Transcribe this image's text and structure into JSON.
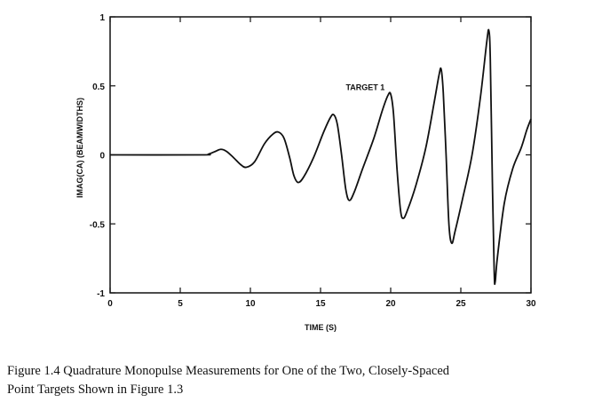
{
  "chart_data": {
    "type": "line",
    "title": "",
    "xlabel": "TIME (S)",
    "ylabel": "IMAG(CA)  (BEAMWIDTHS)",
    "xlim": [
      0,
      30
    ],
    "ylim": [
      -1,
      1
    ],
    "xticks": [
      0,
      5,
      10,
      15,
      20,
      25,
      30
    ],
    "xtick_labels": [
      "0",
      "5",
      "10",
      "15",
      "20",
      "25",
      "30"
    ],
    "yticks": [
      -1,
      -0.5,
      0,
      0.5,
      1
    ],
    "ytick_labels": [
      "-1",
      "-0.5",
      "0",
      "0.5",
      "1"
    ],
    "grid": false,
    "annotations": [
      {
        "text": "TARGET 1",
        "x": 16.8,
        "y": 0.47
      }
    ],
    "series": [
      {
        "name": "",
        "color": "#111111",
        "points": [
          [
            0,
            0
          ],
          [
            6.5,
            0
          ],
          [
            7.0,
            0.005
          ],
          [
            7.5,
            0.025
          ],
          [
            7.9,
            0.04
          ],
          [
            8.3,
            0.025
          ],
          [
            8.8,
            -0.02
          ],
          [
            9.3,
            -0.07
          ],
          [
            9.7,
            -0.09
          ],
          [
            10.3,
            -0.05
          ],
          [
            11.0,
            0.08
          ],
          [
            11.6,
            0.15
          ],
          [
            12.0,
            0.165
          ],
          [
            12.4,
            0.12
          ],
          [
            12.8,
            -0.02
          ],
          [
            13.1,
            -0.15
          ],
          [
            13.4,
            -0.2
          ],
          [
            13.8,
            -0.16
          ],
          [
            14.5,
            -0.02
          ],
          [
            15.2,
            0.16
          ],
          [
            15.7,
            0.27
          ],
          [
            15.95,
            0.29
          ],
          [
            16.2,
            0.22
          ],
          [
            16.5,
            0.0
          ],
          [
            16.8,
            -0.25
          ],
          [
            17.05,
            -0.33
          ],
          [
            17.4,
            -0.27
          ],
          [
            18.0,
            -0.1
          ],
          [
            18.8,
            0.12
          ],
          [
            19.4,
            0.32
          ],
          [
            19.8,
            0.43
          ],
          [
            20.0,
            0.44
          ],
          [
            20.2,
            0.3
          ],
          [
            20.45,
            -0.1
          ],
          [
            20.7,
            -0.4
          ],
          [
            20.9,
            -0.46
          ],
          [
            21.2,
            -0.4
          ],
          [
            21.8,
            -0.22
          ],
          [
            22.5,
            0.05
          ],
          [
            23.1,
            0.38
          ],
          [
            23.45,
            0.58
          ],
          [
            23.6,
            0.62
          ],
          [
            23.75,
            0.45
          ],
          [
            23.95,
            0.0
          ],
          [
            24.15,
            -0.5
          ],
          [
            24.35,
            -0.64
          ],
          [
            24.6,
            -0.55
          ],
          [
            25.1,
            -0.33
          ],
          [
            25.8,
            0.0
          ],
          [
            26.4,
            0.42
          ],
          [
            26.85,
            0.82
          ],
          [
            27.0,
            0.9
          ],
          [
            27.1,
            0.7
          ],
          [
            27.25,
            -0.2
          ],
          [
            27.38,
            -0.85
          ],
          [
            27.45,
            -0.92
          ],
          [
            27.6,
            -0.75
          ],
          [
            28.1,
            -0.35
          ],
          [
            28.7,
            -0.1
          ],
          [
            29.3,
            0.05
          ],
          [
            29.7,
            0.18
          ],
          [
            30.0,
            0.26
          ]
        ]
      }
    ]
  },
  "caption": {
    "line1": "Figure  1.4  Quadrature Monopulse Measurements for One of the Two, Closely-Spaced",
    "line2": "Point Targets Shown in Figure 1.3"
  }
}
